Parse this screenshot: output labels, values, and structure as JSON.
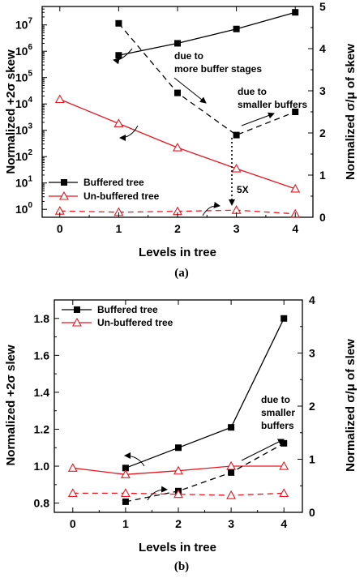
{
  "chart_data": [
    {
      "type": "line",
      "caption": "(a)",
      "xlabel": "Levels in tree",
      "ylabel_left": "Normalized +2σ skew",
      "ylabel_right": "Normalized σ/μ of skew",
      "xlim": [
        -0.3,
        4.3
      ],
      "x_ticks": [
        "0",
        "1",
        "2",
        "3",
        "4"
      ],
      "y_left_scale": "log",
      "y_left_lim": [
        0.5,
        50000000
      ],
      "y_left_ticks": [
        {
          "base": "10",
          "exp": "0",
          "v": 1
        },
        {
          "base": "10",
          "exp": "1",
          "v": 10
        },
        {
          "base": "10",
          "exp": "2",
          "v": 100
        },
        {
          "base": "10",
          "exp": "3",
          "v": 1000
        },
        {
          "base": "10",
          "exp": "4",
          "v": 10000
        },
        {
          "base": "10",
          "exp": "5",
          "v": 100000
        },
        {
          "base": "10",
          "exp": "6",
          "v": 1000000
        },
        {
          "base": "10",
          "exp": "7",
          "v": 10000000
        }
      ],
      "y_right_lim": [
        0,
        5
      ],
      "y_right_ticks": [
        "0",
        "1",
        "2",
        "3",
        "4",
        "5"
      ],
      "series": [
        {
          "name": "Buffered tree",
          "axis": "left",
          "style": "solid",
          "color": "#000000",
          "marker": "square",
          "x": [
            1,
            2,
            3,
            4
          ],
          "y": [
            700000,
            2000000,
            7000000,
            30000000
          ]
        },
        {
          "name": "Un-buffered tree",
          "axis": "left",
          "style": "solid",
          "color": "#e8141e",
          "marker": "triangle",
          "x": [
            0,
            1,
            2,
            3,
            4
          ],
          "y": [
            15000,
            1800,
            220,
            35,
            6
          ]
        },
        {
          "name": "",
          "axis": "right",
          "style": "dashed",
          "color": "#000000",
          "marker": "square",
          "x": [
            1,
            2,
            3,
            4
          ],
          "y": [
            4.6,
            2.95,
            1.95,
            2.5
          ]
        },
        {
          "name": "",
          "axis": "right",
          "style": "dashed",
          "color": "#e8141e",
          "marker": "triangle",
          "x": [
            0,
            1,
            2,
            3,
            4
          ],
          "y": [
            0.15,
            0.12,
            0.14,
            0.17,
            0.08
          ]
        }
      ],
      "legend_position": "bottom-left",
      "annotations": [
        {
          "lines": [
            "due to",
            "more buffer stages"
          ]
        },
        {
          "lines": [
            "due to",
            "smaller buffers"
          ]
        },
        {
          "lines": [
            "5X"
          ]
        }
      ]
    },
    {
      "type": "line",
      "caption": "(b)",
      "xlabel": "Levels in tree",
      "ylabel_left": "Normalized +2σ slew",
      "ylabel_right": "Normalized σ/μ of slew",
      "xlim": [
        -0.35,
        4.35
      ],
      "x_ticks": [
        "0",
        "1",
        "2",
        "3",
        "4"
      ],
      "y_left_lim": [
        0.75,
        1.9
      ],
      "y_left_ticks": [
        "0.8",
        "1.0",
        "1.2",
        "1.4",
        "1.6",
        "1.8"
      ],
      "y_right_lim": [
        0,
        4
      ],
      "y_right_ticks": [
        "0",
        "1",
        "2",
        "3",
        "4"
      ],
      "series": [
        {
          "name": "Buffered tree",
          "axis": "left",
          "style": "solid",
          "color": "#000000",
          "marker": "square",
          "x": [
            1,
            2,
            3,
            4
          ],
          "y": [
            0.99,
            1.1,
            1.21,
            1.8
          ]
        },
        {
          "name": "Un-buffered tree",
          "axis": "left",
          "style": "solid",
          "color": "#e8141e",
          "marker": "triangle",
          "x": [
            0,
            1,
            2,
            3,
            4
          ],
          "y": [
            0.99,
            0.955,
            0.975,
            1.0,
            1.0
          ]
        },
        {
          "name": "",
          "axis": "right",
          "style": "dashed",
          "color": "#000000",
          "marker": "square",
          "x": [
            1,
            2,
            3,
            4
          ],
          "y": [
            0.2,
            0.4,
            0.75,
            1.3
          ]
        },
        {
          "name": "",
          "axis": "right",
          "style": "dashed",
          "color": "#e8141e",
          "marker": "triangle",
          "x": [
            0,
            1,
            2,
            3,
            4
          ],
          "y": [
            0.36,
            0.36,
            0.34,
            0.32,
            0.36
          ]
        }
      ],
      "legend_position": "top-left",
      "annotations": [
        {
          "lines": [
            "due to",
            "smaller",
            "buffers"
          ]
        }
      ]
    }
  ]
}
